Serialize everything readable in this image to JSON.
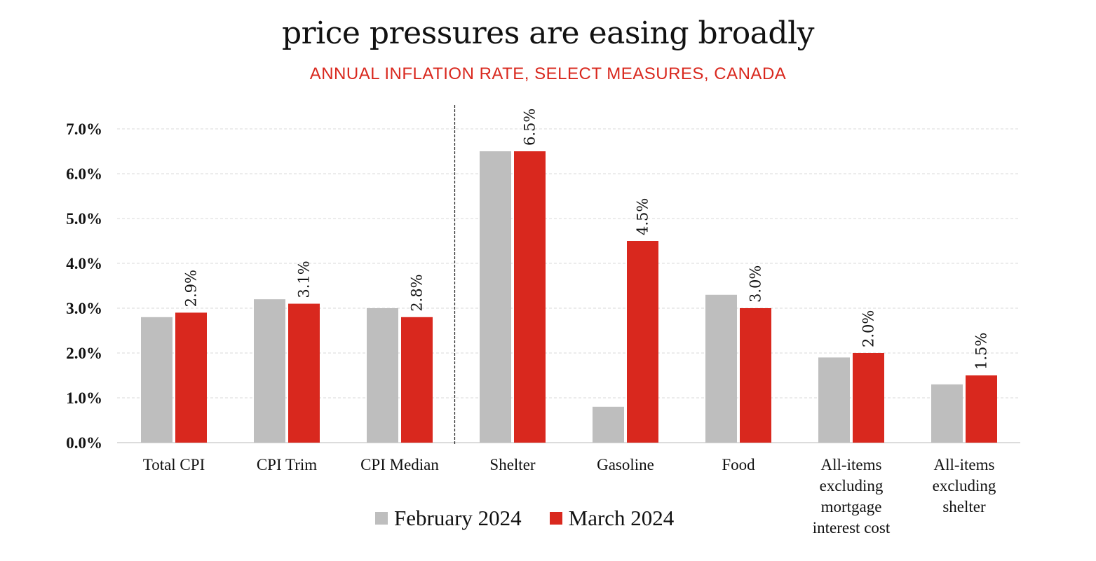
{
  "chart_data": {
    "type": "bar",
    "title": "price pressures are easing broadly",
    "subtitle": "ANNUAL INFLATION RATE, SELECT MEASURES, CANADA",
    "xlabel": "",
    "ylabel": "",
    "ylim": [
      0,
      7
    ],
    "yticks": [
      0,
      1,
      2,
      3,
      4,
      5,
      6,
      7
    ],
    "ytick_labels": [
      "0.0%",
      "1.0%",
      "2.0%",
      "3.0%",
      "4.0%",
      "5.0%",
      "6.0%",
      "7.0%"
    ],
    "grid": true,
    "divider_after_category_index": 2,
    "categories": [
      [
        "Total CPI"
      ],
      [
        "CPI Trim"
      ],
      [
        "CPI Median"
      ],
      [
        "Shelter"
      ],
      [
        "Gasoline"
      ],
      [
        "Food"
      ],
      [
        "All-items",
        "excluding",
        "mortgage",
        "interest cost"
      ],
      [
        "All-items",
        "excluding",
        "shelter"
      ]
    ],
    "series": [
      {
        "name": "February 2024",
        "color": "#bebebe",
        "values": [
          2.8,
          3.2,
          3.0,
          6.5,
          0.8,
          3.3,
          1.9,
          1.3
        ],
        "labels": null
      },
      {
        "name": "March 2024",
        "color": "#d9281e",
        "values": [
          2.9,
          3.1,
          2.8,
          6.5,
          4.5,
          3.0,
          2.0,
          1.5
        ],
        "labels": [
          "2.9%",
          "3.1%",
          "2.8%",
          "6.5%",
          "4.5%",
          "3.0%",
          "2.0%",
          "1.5%"
        ]
      }
    ],
    "legend": "bottom"
  }
}
